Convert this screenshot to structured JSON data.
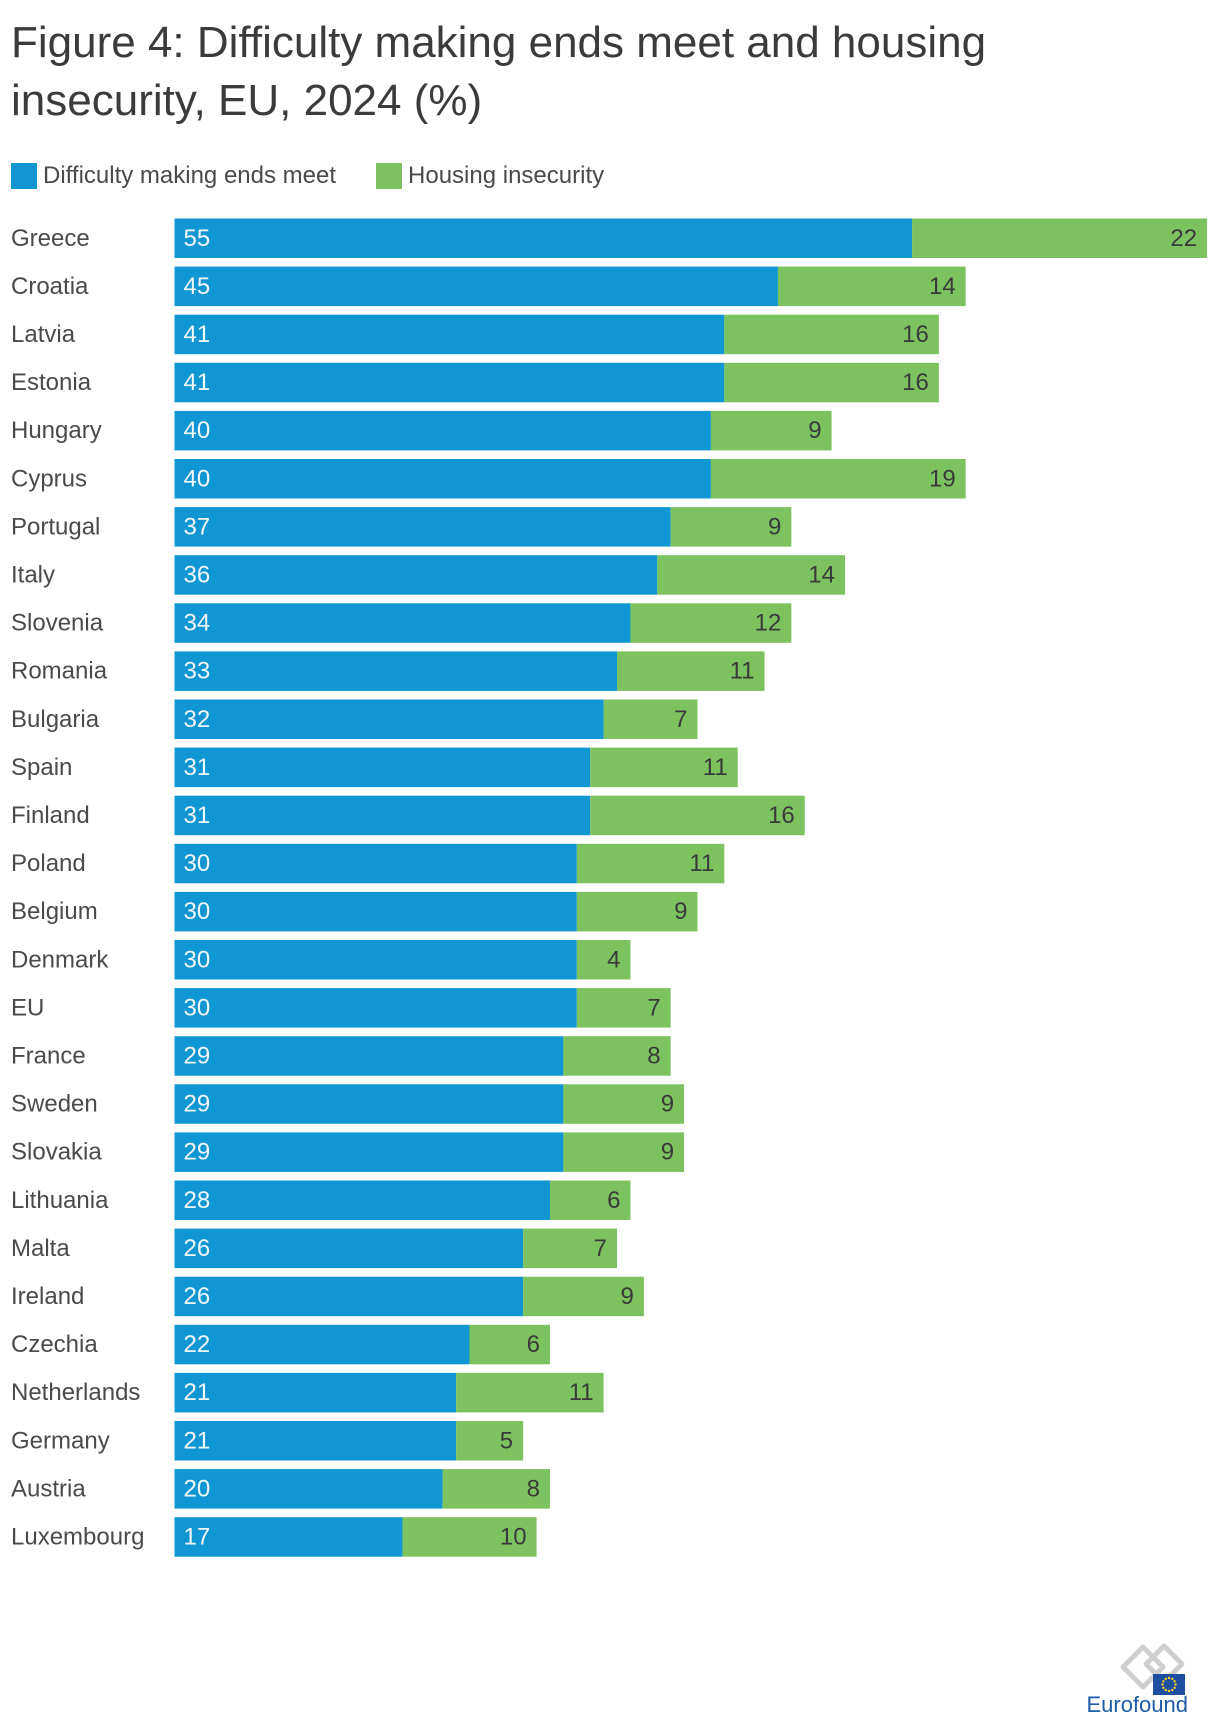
{
  "chart_data": {
    "type": "bar",
    "orientation": "horizontal",
    "stacked": true,
    "title": "Figure 4: Difficulty making ends meet and housing insecurity, EU, 2024 (%)",
    "legend": "top-left",
    "grid": false,
    "data_labels": true,
    "categories": [
      "Greece",
      "Croatia",
      "Latvia",
      "Estonia",
      "Hungary",
      "Cyprus",
      "Portugal",
      "Italy",
      "Slovenia",
      "Romania",
      "Bulgaria",
      "Spain",
      "Finland",
      "Poland",
      "Belgium",
      "Denmark",
      "EU",
      "France",
      "Sweden",
      "Slovakia",
      "Lithuania",
      "Malta",
      "Ireland",
      "Czechia",
      "Netherlands",
      "Germany",
      "Austria",
      "Luxembourg"
    ],
    "series": [
      {
        "name": "Difficulty making ends meet",
        "color": "#1097d3",
        "values": [
          55,
          45,
          41,
          41,
          40,
          40,
          37,
          36,
          34,
          33,
          32,
          31,
          31,
          30,
          30,
          30,
          30,
          29,
          29,
          29,
          28,
          26,
          26,
          22,
          21,
          21,
          20,
          17
        ]
      },
      {
        "name": "Housing insecurity",
        "color": "#7cc35f",
        "values": [
          22,
          14,
          16,
          16,
          9,
          19,
          9,
          14,
          12,
          11,
          7,
          11,
          16,
          11,
          9,
          4,
          7,
          8,
          9,
          9,
          6,
          7,
          9,
          6,
          11,
          5,
          8,
          10
        ]
      }
    ]
  },
  "logo": {
    "text": "Eurofound",
    "flag_color": "#1f4fa0",
    "star_color": "#ffd21f"
  }
}
